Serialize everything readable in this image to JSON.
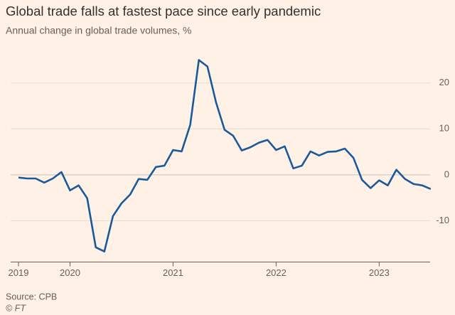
{
  "chart_data": {
    "type": "line",
    "title": "Global trade falls at fastest pace since early pandemic",
    "subtitle": "Annual change in global trade volumes, %",
    "source": "Source: CPB",
    "credit": "© FT",
    "categories": [
      "2019",
      null,
      null,
      null,
      null,
      null,
      "2020",
      null,
      null,
      null,
      null,
      null,
      null,
      null,
      null,
      null,
      null,
      null,
      "2021",
      null,
      null,
      null,
      null,
      null,
      null,
      null,
      null,
      null,
      null,
      null,
      "2022",
      null,
      null,
      null,
      null,
      null,
      null,
      null,
      null,
      null,
      null,
      null,
      "2023",
      null,
      null,
      null,
      null,
      null,
      null
    ],
    "series": [
      {
        "name": "Global trade volumes",
        "color": "#1a5a9a",
        "values": [
          -0.6,
          -0.8,
          -0.8,
          -1.7,
          -0.8,
          0.6,
          -3.4,
          -2.3,
          -5.1,
          -15.8,
          -16.7,
          -9,
          -6.2,
          -4.3,
          -0.9,
          -1.1,
          1.7,
          2,
          5.4,
          5.1,
          10.9,
          25,
          23.6,
          15.8,
          9.8,
          8.5,
          5.3,
          6,
          7,
          7.6,
          5.4,
          6.2,
          1.4,
          2,
          5.1,
          4.2,
          5,
          5.1,
          5.7,
          3.7,
          -1.1,
          -2.9,
          -1.2,
          -2.3,
          1.1,
          -0.9,
          -2,
          -2.3,
          -3.1
        ]
      }
    ],
    "ylim": [
      -19,
      26
    ],
    "yticks": [
      -10,
      0,
      10,
      20
    ],
    "grid": true
  }
}
